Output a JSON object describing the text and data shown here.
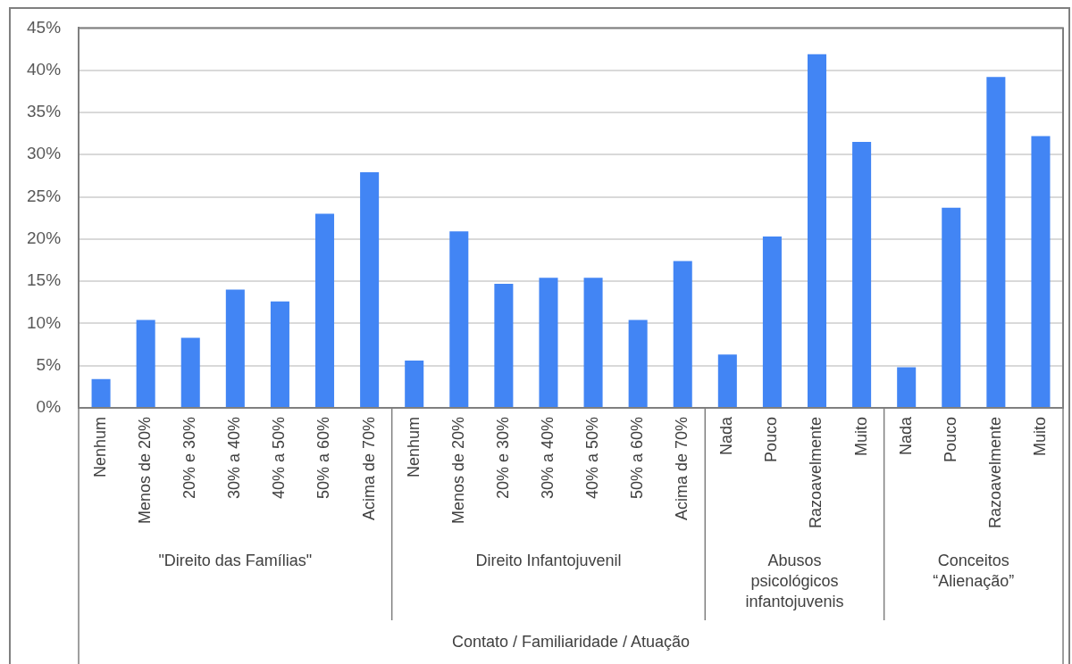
{
  "chart_data": {
    "type": "bar",
    "categories": [
      "Nenhum",
      "Menos de 20%",
      "20% e 30%",
      "30% a 40%",
      "40% a 50%",
      "50% a 60%",
      "Acima de 70%",
      "Nenhum",
      "Menos de 20%",
      "20% e 30%",
      "30% a 40%",
      "40% a 50%",
      "50% a 60%",
      "Acima de 70%",
      "Nada",
      "Pouco",
      "Razoavelmente",
      "Muito",
      "Nada",
      "Pouco",
      "Razoavelmente",
      "Muito"
    ],
    "values": [
      3.4,
      10.4,
      8.3,
      14.0,
      12.6,
      23.0,
      27.9,
      5.6,
      20.9,
      14.7,
      15.4,
      15.4,
      10.4,
      17.4,
      6.3,
      20.3,
      41.9,
      31.5,
      4.8,
      23.7,
      39.2,
      32.2
    ],
    "color": "#4285f4",
    "annotations": [
      "\"Direito das Famílias\"",
      "Direito Infantojuvenil",
      "Abusos psicológicos infantojuvenis",
      "Conceitos “Alienação”",
      "Contato / Familiaridade / Atuação"
    ],
    "ylim": [
      0,
      45
    ],
    "yticks": [
      {
        "value": 0,
        "label": "0%"
      },
      {
        "value": 5,
        "label": "5%"
      },
      {
        "value": 10,
        "label": "10%"
      },
      {
        "value": 15,
        "label": "15%"
      },
      {
        "value": 20,
        "label": "20%"
      },
      {
        "value": 25,
        "label": "25%"
      },
      {
        "value": 30,
        "label": "30%"
      },
      {
        "value": 35,
        "label": "35%"
      },
      {
        "value": 40,
        "label": "40%"
      },
      {
        "value": 45,
        "label": "45%"
      }
    ],
    "grid": "y",
    "legend": false
  }
}
